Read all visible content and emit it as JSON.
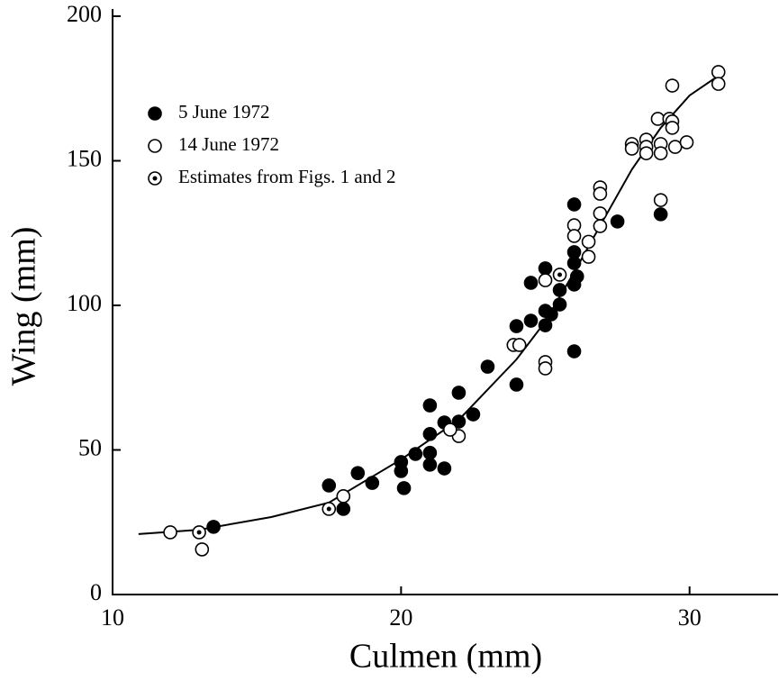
{
  "chart_data": {
    "type": "scatter",
    "x_label": "Culmen (mm)",
    "y_label": "Wing (mm)",
    "xlim": [
      10,
      33.1
    ],
    "ylim": [
      0,
      200
    ],
    "xticks": [
      10,
      20,
      30
    ],
    "yticks": [
      0,
      50,
      100,
      150,
      200
    ],
    "legend": "upper left",
    "series": [
      {
        "name": "5 June 1972",
        "color": "#000000",
        "marker": "filled",
        "x": [
          13.5,
          17.5,
          18.0,
          18.5,
          19.0,
          20.0,
          20.0,
          20.1,
          20.5,
          21.0,
          21.0,
          21.0,
          21.0,
          21.5,
          21.5,
          22.0,
          22.0,
          22.5,
          23.0,
          24.0,
          24.0,
          24.5,
          24.5,
          25.0,
          25.0,
          25.0,
          25.2,
          25.5,
          25.5,
          26.0,
          26.0,
          26.0,
          26.0,
          26.0,
          26.1,
          27.5,
          29.0
        ],
        "y": [
          23.4,
          37.7,
          29.6,
          42,
          38.6,
          45.8,
          42.7,
          36.8,
          48.6,
          49,
          55.5,
          65.4,
          44.9,
          59.5,
          43.6,
          59.8,
          69.8,
          62.3,
          78.8,
          72.6,
          92.8,
          94.7,
          107.8,
          112.8,
          93.1,
          98.1,
          96.9,
          100.3,
          105.3,
          134.9,
          118.4,
          114.6,
          107.2,
          84.1,
          110,
          129,
          131.5
        ]
      },
      {
        "name": "14 June 1972",
        "color": "#000000",
        "marker": "open",
        "x": [
          12.0,
          13.1,
          18.0,
          22.0,
          21.7,
          23.9,
          24.1,
          25.0,
          25.0,
          25.0,
          26.0,
          26.0,
          26.5,
          26.5,
          26.9,
          26.9,
          26.9,
          26.9,
          28.0,
          28.0,
          28.5,
          28.5,
          28.5,
          28.9,
          29.0,
          29.0,
          29.0,
          29.3,
          29.4,
          29.4,
          29.4,
          29.5,
          29.9,
          31.0,
          31.0
        ],
        "y": [
          21.5,
          15.6,
          34,
          54.8,
          57,
          86.3,
          86.3,
          108.7,
          80.4,
          78.2,
          127.7,
          124,
          122,
          116.8,
          140.8,
          138.6,
          131.8,
          127.4,
          155.8,
          154.2,
          157.3,
          154.8,
          152.6,
          164.5,
          155.8,
          152.6,
          136.4,
          164.5,
          176,
          163.6,
          161.4,
          154.8,
          156.4,
          180.7,
          176.6
        ]
      },
      {
        "name": "Estimates from Figs. 1 and 2",
        "color": "#000000",
        "marker": "dotted",
        "x": [
          13.0,
          17.5,
          25.5
        ],
        "y": [
          21.5,
          29.6,
          110.6
        ]
      }
    ],
    "curve": {
      "color": "#000000",
      "x": [
        10.9,
        13,
        15.5,
        17.5,
        20,
        22,
        24,
        25,
        26,
        27,
        28,
        29,
        30,
        31
      ],
      "y": [
        20.9,
        22.4,
        26.8,
        31.8,
        46.7,
        60.4,
        81.3,
        94.4,
        111.5,
        129.3,
        147,
        161.4,
        172.6,
        179.4
      ]
    }
  }
}
